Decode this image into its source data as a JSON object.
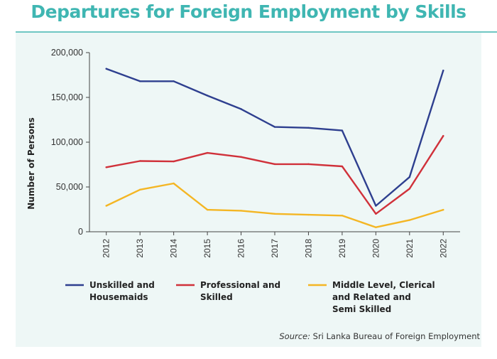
{
  "chart_data": {
    "type": "line",
    "title": "Departures for Foreign Employment by Skills",
    "xlabel": "",
    "ylabel": "Number of Persons",
    "x": [
      "2012",
      "2013",
      "2014",
      "2015",
      "2016",
      "2017",
      "2018",
      "2019",
      "2020",
      "2021",
      "2022"
    ],
    "ylim": [
      0,
      200000
    ],
    "yticks": [
      0,
      50000,
      100000,
      150000,
      200000
    ],
    "ytick_labels": [
      "0",
      "50,000",
      "100,000",
      "150,000",
      "200,000"
    ],
    "grid": false,
    "legend_position": "bottom",
    "series": [
      {
        "name": "Unskilled and Housemaids",
        "legend_lines": [
          "Unskilled and",
          "Housemaids"
        ],
        "color": "#2e3f8f",
        "values": [
          182000,
          168000,
          168000,
          152000,
          137000,
          117000,
          116000,
          113000,
          29000,
          61000,
          180000
        ]
      },
      {
        "name": "Professional and Skilled",
        "legend_lines": [
          "Professional and",
          "Skilled"
        ],
        "color": "#d0313a",
        "values": [
          72000,
          79000,
          78500,
          88000,
          83500,
          75500,
          75500,
          73000,
          20000,
          48000,
          107000
        ]
      },
      {
        "name": "Middle Level, Clerical and Related and Semi Skilled",
        "legend_lines": [
          "Middle Level, Clerical",
          "and Related and",
          "Semi Skilled"
        ],
        "color": "#f4b624",
        "values": [
          29000,
          47000,
          54000,
          24500,
          23500,
          20000,
          19000,
          18000,
          5000,
          13000,
          24500
        ]
      }
    ]
  },
  "source": {
    "label": "Source:",
    "text": "Sri Lanka Bureau of Foreign Employment"
  }
}
